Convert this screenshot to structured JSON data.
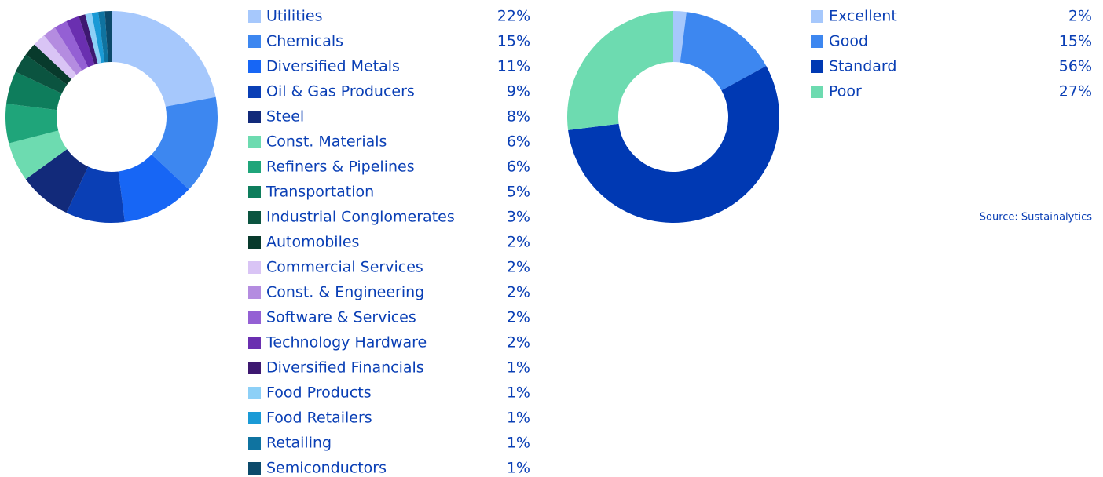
{
  "chart_data": [
    {
      "type": "donut",
      "categories": [
        "Utilities",
        "Chemicals",
        "Diversified Metals",
        "Oil & Gas Producers",
        "Steel",
        "Const. Materials",
        "Refiners & Pipelines",
        "Transportation",
        "Industrial Conglomerates",
        "Automobiles",
        "Commercial Services",
        "Const. & Engineering",
        "Software & Services",
        "Technology Hardware",
        "Diversified Financials",
        "Food Products",
        "Food Retailers",
        "Retailing",
        "Semiconductors"
      ],
      "values": [
        22,
        15,
        11,
        9,
        8,
        6,
        6,
        5,
        3,
        2,
        2,
        2,
        2,
        2,
        1,
        1,
        1,
        1,
        1
      ],
      "value_labels": [
        "22%",
        "15%",
        "11%",
        "9%",
        "8%",
        "6%",
        "6%",
        "5%",
        "3%",
        "2%",
        "2%",
        "2%",
        "2%",
        "2%",
        "1%",
        "1%",
        "1%",
        "1%",
        "1%"
      ],
      "colors": [
        "#a6c8fc",
        "#3d87f0",
        "#1766f5",
        "#0a3fb5",
        "#122a7a",
        "#6ddbb0",
        "#1fa57a",
        "#0e7d5c",
        "#0b5440",
        "#083a2c",
        "#d9c4f5",
        "#b48ce0",
        "#9460d4",
        "#6a2fb0",
        "#3d1870",
        "#8dd0f7",
        "#1a9ad6",
        "#0f73a0",
        "#0c4a6b"
      ]
    },
    {
      "type": "donut",
      "categories": [
        "Excellent",
        "Good",
        "Standard",
        "Poor"
      ],
      "values": [
        2,
        15,
        56,
        27
      ],
      "value_labels": [
        "2%",
        "15%",
        "56%",
        "27%"
      ],
      "colors": [
        "#a6c8fc",
        "#3d87f0",
        "#0039b3",
        "#6ddbb0"
      ],
      "source": "Source: Sustainalytics"
    }
  ]
}
